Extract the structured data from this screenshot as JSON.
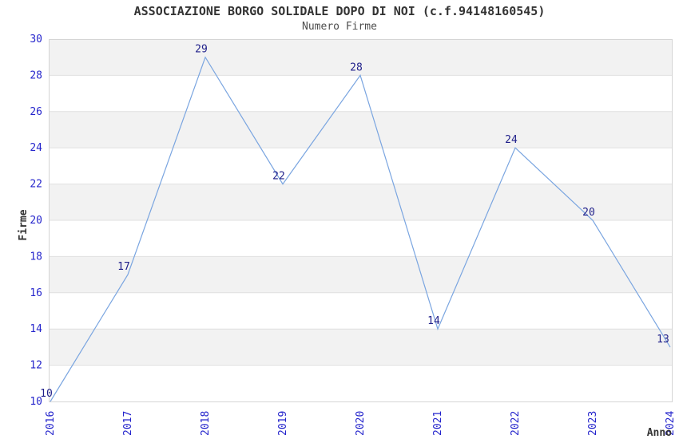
{
  "chart_data": {
    "type": "line",
    "title": "ASSOCIAZIONE BORGO SOLIDALE DOPO DI NOI (c.f.94148160545)",
    "subtitle": "Numero Firme",
    "xlabel": "Anno",
    "ylabel": "Firme",
    "x": [
      "2016",
      "2017",
      "2018",
      "2019",
      "2020",
      "2021",
      "2022",
      "2023",
      "2024"
    ],
    "values": [
      10,
      17,
      29,
      22,
      28,
      14,
      24,
      20,
      13
    ],
    "ylim": [
      10,
      30
    ],
    "ytick_step": 2,
    "yticks": [
      10,
      12,
      14,
      16,
      18,
      20,
      22,
      24,
      26,
      28,
      30
    ],
    "grid": "horizontal-bands-alternating",
    "legend": "none",
    "colors": {
      "line": "#7aa5e0",
      "tick_labels": "#2525cc",
      "data_labels": "#1f1f8a",
      "band": "#f2f2f2",
      "gridline": "#e0e0e0",
      "plot_border": "#d5d5d5",
      "title": "#333333",
      "subtitle": "#4d4d4d",
      "axis_titles": "#333333",
      "background": "#ffffff"
    }
  }
}
